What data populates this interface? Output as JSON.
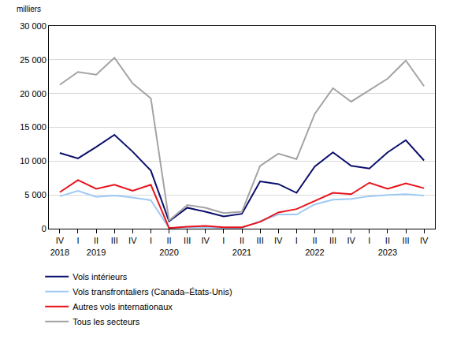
{
  "chart_data": {
    "type": "line",
    "y_label": "milliers",
    "categories": [
      "IV",
      "I",
      "II",
      "III",
      "IV",
      "I",
      "II",
      "III",
      "IV",
      "I",
      "II",
      "III",
      "IV",
      "I",
      "II",
      "III",
      "IV",
      "I",
      "II",
      "III",
      "IV"
    ],
    "category_groups": [
      "2018",
      null,
      "2019",
      null,
      null,
      null,
      "2020",
      null,
      null,
      null,
      "2021",
      null,
      null,
      null,
      "2022",
      null,
      null,
      null,
      "2023",
      null,
      null
    ],
    "series": [
      {
        "name": "Vols intérieurs",
        "color": "#0b0f6b",
        "values": [
          11200,
          10400,
          12100,
          13900,
          11400,
          8600,
          1100,
          3100,
          2500,
          1800,
          2200,
          7000,
          6600,
          5300,
          9200,
          11300,
          9300,
          8900,
          11300,
          13100,
          10100
        ]
      },
      {
        "name": "Vols transfrontaliers (Canada–États-Unis)",
        "color": "#9ecaf4",
        "values": [
          4800,
          5600,
          4700,
          4900,
          4600,
          4200,
          100,
          200,
          200,
          100,
          100,
          1100,
          2100,
          2100,
          3600,
          4300,
          4400,
          4800,
          5000,
          5100,
          4900
        ]
      },
      {
        "name": "Autres vols internationaux",
        "color": "#e8141c",
        "values": [
          5400,
          7200,
          5900,
          6500,
          5600,
          6500,
          100,
          300,
          400,
          200,
          200,
          1000,
          2400,
          2900,
          4100,
          5300,
          5100,
          6800,
          5900,
          6700,
          6000
        ]
      },
      {
        "name": "Tous les secteurs",
        "color": "#a3a3a3",
        "values": [
          21300,
          23200,
          22800,
          25300,
          21500,
          19300,
          1200,
          3500,
          3100,
          2300,
          2500,
          9300,
          11100,
          10300,
          17000,
          20800,
          18800,
          20500,
          22200,
          24900,
          21100
        ]
      }
    ],
    "ylim": [
      0,
      30000
    ],
    "yticks": [
      0,
      {
        "value": 5000,
        "label": "5 000"
      },
      {
        "value": 10000,
        "label": "10 000"
      },
      {
        "value": 15000,
        "label": "15 000"
      },
      {
        "value": 20000,
        "label": "20 000"
      },
      {
        "value": 25000,
        "label": "25 000"
      },
      {
        "value": 30000,
        "label": "30 000"
      }
    ],
    "grid": true,
    "legend": "bottom"
  }
}
